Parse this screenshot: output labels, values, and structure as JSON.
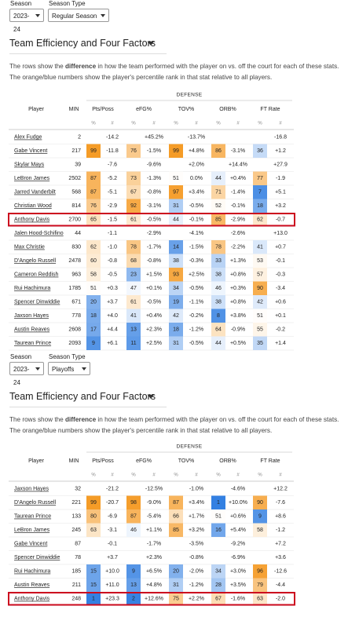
{
  "sections": [
    {
      "season_label": "Season",
      "season": "2023-24",
      "type_label": "Season Type",
      "season_type": "Regular Season",
      "title": "Team Efficiency and Four Factors",
      "description": {
        "before": "The rows show the ",
        "bold": "difference",
        "after": " in how the team performed with the player on vs. off the court for each of these stats.",
        "second": "The orange/blue numbers show the player's percentile rank in that stat relative to all players."
      },
      "table": {
        "group": "DEFENSE",
        "columns": [
          "Player",
          "MIN",
          "Pts/Poss",
          "eFG%",
          "TOV%",
          "ORB%",
          "FT Rate"
        ],
        "subheaders": [
          "%",
          "#",
          "%",
          "#",
          "%",
          "#",
          "%",
          "#",
          "%",
          "#"
        ],
        "rows": [
          {
            "player": "Alex Fudge",
            "min": 2,
            "stats": [
              [
                null,
                "-14.2"
              ],
              [
                null,
                "+45.2%"
              ],
              [
                null,
                "-13.7%"
              ],
              [
                null,
                null
              ],
              [
                null,
                "-16.8"
              ]
            ]
          },
          {
            "player": "Gabe Vincent",
            "min": 217,
            "stats": [
              [
                99,
                "-11.8"
              ],
              [
                76,
                "-1.5%"
              ],
              [
                99,
                "+4.8%"
              ],
              [
                86,
                "-3.1%"
              ],
              [
                36,
                "+1.2"
              ]
            ]
          },
          {
            "player": "Skylar Mays",
            "min": 39,
            "stats": [
              [
                null,
                "-7.6"
              ],
              [
                null,
                "-9.6%"
              ],
              [
                null,
                "+2.0%"
              ],
              [
                null,
                "+14.4%"
              ],
              [
                null,
                "+27.9"
              ]
            ]
          },
          {
            "player": "LeBron James",
            "min": 2502,
            "stats": [
              [
                87,
                "-5.2"
              ],
              [
                73,
                "-1.3%"
              ],
              [
                51,
                "0.0%"
              ],
              [
                44,
                "+0.4%"
              ],
              [
                77,
                "-1.9"
              ]
            ]
          },
          {
            "player": "Jarred Vanderbilt",
            "min": 568,
            "stats": [
              [
                87,
                "-5.1"
              ],
              [
                67,
                "-0.8%"
              ],
              [
                97,
                "+3.4%"
              ],
              [
                71,
                "-1.4%"
              ],
              [
                7,
                "+5.1"
              ]
            ]
          },
          {
            "player": "Christian Wood",
            "min": 814,
            "stats": [
              [
                76,
                "-2.9"
              ],
              [
                92,
                "-3.1%"
              ],
              [
                31,
                "-0.5%"
              ],
              [
                52,
                "-0.1%"
              ],
              [
                18,
                "+3.2"
              ]
            ]
          },
          {
            "player": "Anthony Davis",
            "min": 2700,
            "highlighted": true,
            "stats": [
              [
                65,
                "-1.5"
              ],
              [
                61,
                "-0.5%"
              ],
              [
                44,
                "-0.1%"
              ],
              [
                85,
                "-2.9%"
              ],
              [
                62,
                "-0.7"
              ]
            ]
          },
          {
            "player": "Jalen Hood-Schifino",
            "min": 44,
            "stats": [
              [
                null,
                "-1.1"
              ],
              [
                null,
                "-2.9%"
              ],
              [
                null,
                "-4.1%"
              ],
              [
                null,
                "-2.6%"
              ],
              [
                null,
                "+13.0"
              ]
            ]
          },
          {
            "player": "Max Christie",
            "min": 830,
            "stats": [
              [
                62,
                "-1.0"
              ],
              [
                78,
                "-1.7%"
              ],
              [
                14,
                "-1.5%"
              ],
              [
                78,
                "-2.2%"
              ],
              [
                41,
                "+0.7"
              ]
            ]
          },
          {
            "player": "D'Angelo Russell",
            "min": 2478,
            "stats": [
              [
                60,
                "-0.8"
              ],
              [
                68,
                "-0.8%"
              ],
              [
                38,
                "-0.3%"
              ],
              [
                33,
                "+1.3%"
              ],
              [
                53,
                "-0.1"
              ]
            ]
          },
          {
            "player": "Cameron Reddish",
            "min": 963,
            "stats": [
              [
                58,
                "-0.5"
              ],
              [
                23,
                "+1.5%"
              ],
              [
                93,
                "+2.5%"
              ],
              [
                38,
                "+0.8%"
              ],
              [
                57,
                "-0.3"
              ]
            ]
          },
          {
            "player": "Rui Hachimura",
            "min": 1785,
            "stats": [
              [
                51,
                "+0.3"
              ],
              [
                47,
                "+0.1%"
              ],
              [
                34,
                "-0.5%"
              ],
              [
                46,
                "+0.3%"
              ],
              [
                90,
                "-3.4"
              ]
            ]
          },
          {
            "player": "Spencer Dinwiddie",
            "min": 671,
            "stats": [
              [
                20,
                "+3.7"
              ],
              [
                61,
                "-0.5%"
              ],
              [
                19,
                "-1.1%"
              ],
              [
                38,
                "+0.8%"
              ],
              [
                42,
                "+0.6"
              ]
            ]
          },
          {
            "player": "Jaxson Hayes",
            "min": 778,
            "stats": [
              [
                18,
                "+4.0"
              ],
              [
                41,
                "+0.4%"
              ],
              [
                42,
                "-0.2%"
              ],
              [
                8,
                "+3.8%"
              ],
              [
                51,
                "+0.1"
              ]
            ]
          },
          {
            "player": "Austin Reaves",
            "min": 2608,
            "stats": [
              [
                17,
                "+4.4"
              ],
              [
                13,
                "+2.3%"
              ],
              [
                18,
                "-1.2%"
              ],
              [
                64,
                "-0.9%"
              ],
              [
                55,
                "-0.2"
              ]
            ]
          },
          {
            "player": "Taurean Prince",
            "min": 2093,
            "stats": [
              [
                9,
                "+6.1"
              ],
              [
                11,
                "+2.5%"
              ],
              [
                31,
                "-0.5%"
              ],
              [
                44,
                "+0.5%"
              ],
              [
                35,
                "+1.4"
              ]
            ]
          }
        ]
      }
    },
    {
      "season_label": "Season",
      "season": "2023-24",
      "type_label": "Season Type",
      "season_type": "Playoffs",
      "title": "Team Efficiency and Four Factors",
      "description": {
        "before": "The rows show the ",
        "bold": "difference",
        "after": " in how the team performed with the player on vs. off the court for each of these stats.",
        "second": "The orange/blue numbers show the player's percentile rank in that stat relative to all players."
      },
      "table": {
        "group": "DEFENSE",
        "columns": [
          "Player",
          "MIN",
          "Pts/Poss",
          "eFG%",
          "TOV%",
          "ORB%",
          "FT Rate"
        ],
        "subheaders": [
          "%",
          "#",
          "%",
          "#",
          "%",
          "#",
          "%",
          "#",
          "%",
          "#"
        ],
        "rows": [
          {
            "player": "Jaxson Hayes",
            "min": 32,
            "stats": [
              [
                null,
                "-21.2"
              ],
              [
                null,
                "-12.5%"
              ],
              [
                null,
                "-1.0%"
              ],
              [
                null,
                "-4.6%"
              ],
              [
                null,
                "+12.2"
              ]
            ]
          },
          {
            "player": "D'Angelo Russell",
            "min": 221,
            "stats": [
              [
                99,
                "-20.7"
              ],
              [
                98,
                "-9.0%"
              ],
              [
                87,
                "+3.4%"
              ],
              [
                1,
                "+10.0%"
              ],
              [
                90,
                "-7.6"
              ]
            ]
          },
          {
            "player": "Taurean Prince",
            "min": 133,
            "stats": [
              [
                80,
                "-6.9"
              ],
              [
                87,
                "-5.4%"
              ],
              [
                66,
                "+1.7%"
              ],
              [
                51,
                "+0.6%"
              ],
              [
                9,
                "+8.6"
              ]
            ]
          },
          {
            "player": "LeBron James",
            "min": 245,
            "stats": [
              [
                63,
                "-3.1"
              ],
              [
                46,
                "+1.1%"
              ],
              [
                85,
                "+3.2%"
              ],
              [
                16,
                "+5.4%"
              ],
              [
                58,
                "-1.2"
              ]
            ]
          },
          {
            "player": "Gabe Vincent",
            "min": 87,
            "stats": [
              [
                null,
                "-0.1"
              ],
              [
                null,
                "-1.7%"
              ],
              [
                null,
                "-3.5%"
              ],
              [
                null,
                "-9.2%"
              ],
              [
                null,
                "+7.2"
              ]
            ]
          },
          {
            "player": "Spencer Dinwiddie",
            "min": 78,
            "stats": [
              [
                null,
                "+3.7"
              ],
              [
                null,
                "+2.3%"
              ],
              [
                null,
                "-0.8%"
              ],
              [
                null,
                "-6.9%"
              ],
              [
                null,
                "+3.6"
              ]
            ]
          },
          {
            "player": "Rui Hachimura",
            "min": 185,
            "stats": [
              [
                15,
                "+10.0"
              ],
              [
                9,
                "+6.5%"
              ],
              [
                20,
                "-2.0%"
              ],
              [
                34,
                "+3.0%"
              ],
              [
                96,
                "-12.6"
              ]
            ]
          },
          {
            "player": "Austin Reaves",
            "min": 211,
            "stats": [
              [
                15,
                "+11.0"
              ],
              [
                13,
                "+4.8%"
              ],
              [
                31,
                "-1.2%"
              ],
              [
                28,
                "+3.5%"
              ],
              [
                79,
                "-4.4"
              ]
            ]
          },
          {
            "player": "Anthony Davis",
            "min": 248,
            "highlighted": true,
            "stats": [
              [
                1,
                "+23.3"
              ],
              [
                2,
                "+12.6%"
              ],
              [
                75,
                "+2.2%"
              ],
              [
                67,
                "-1.6%"
              ],
              [
                63,
                "-2.0"
              ]
            ]
          }
        ]
      }
    }
  ]
}
